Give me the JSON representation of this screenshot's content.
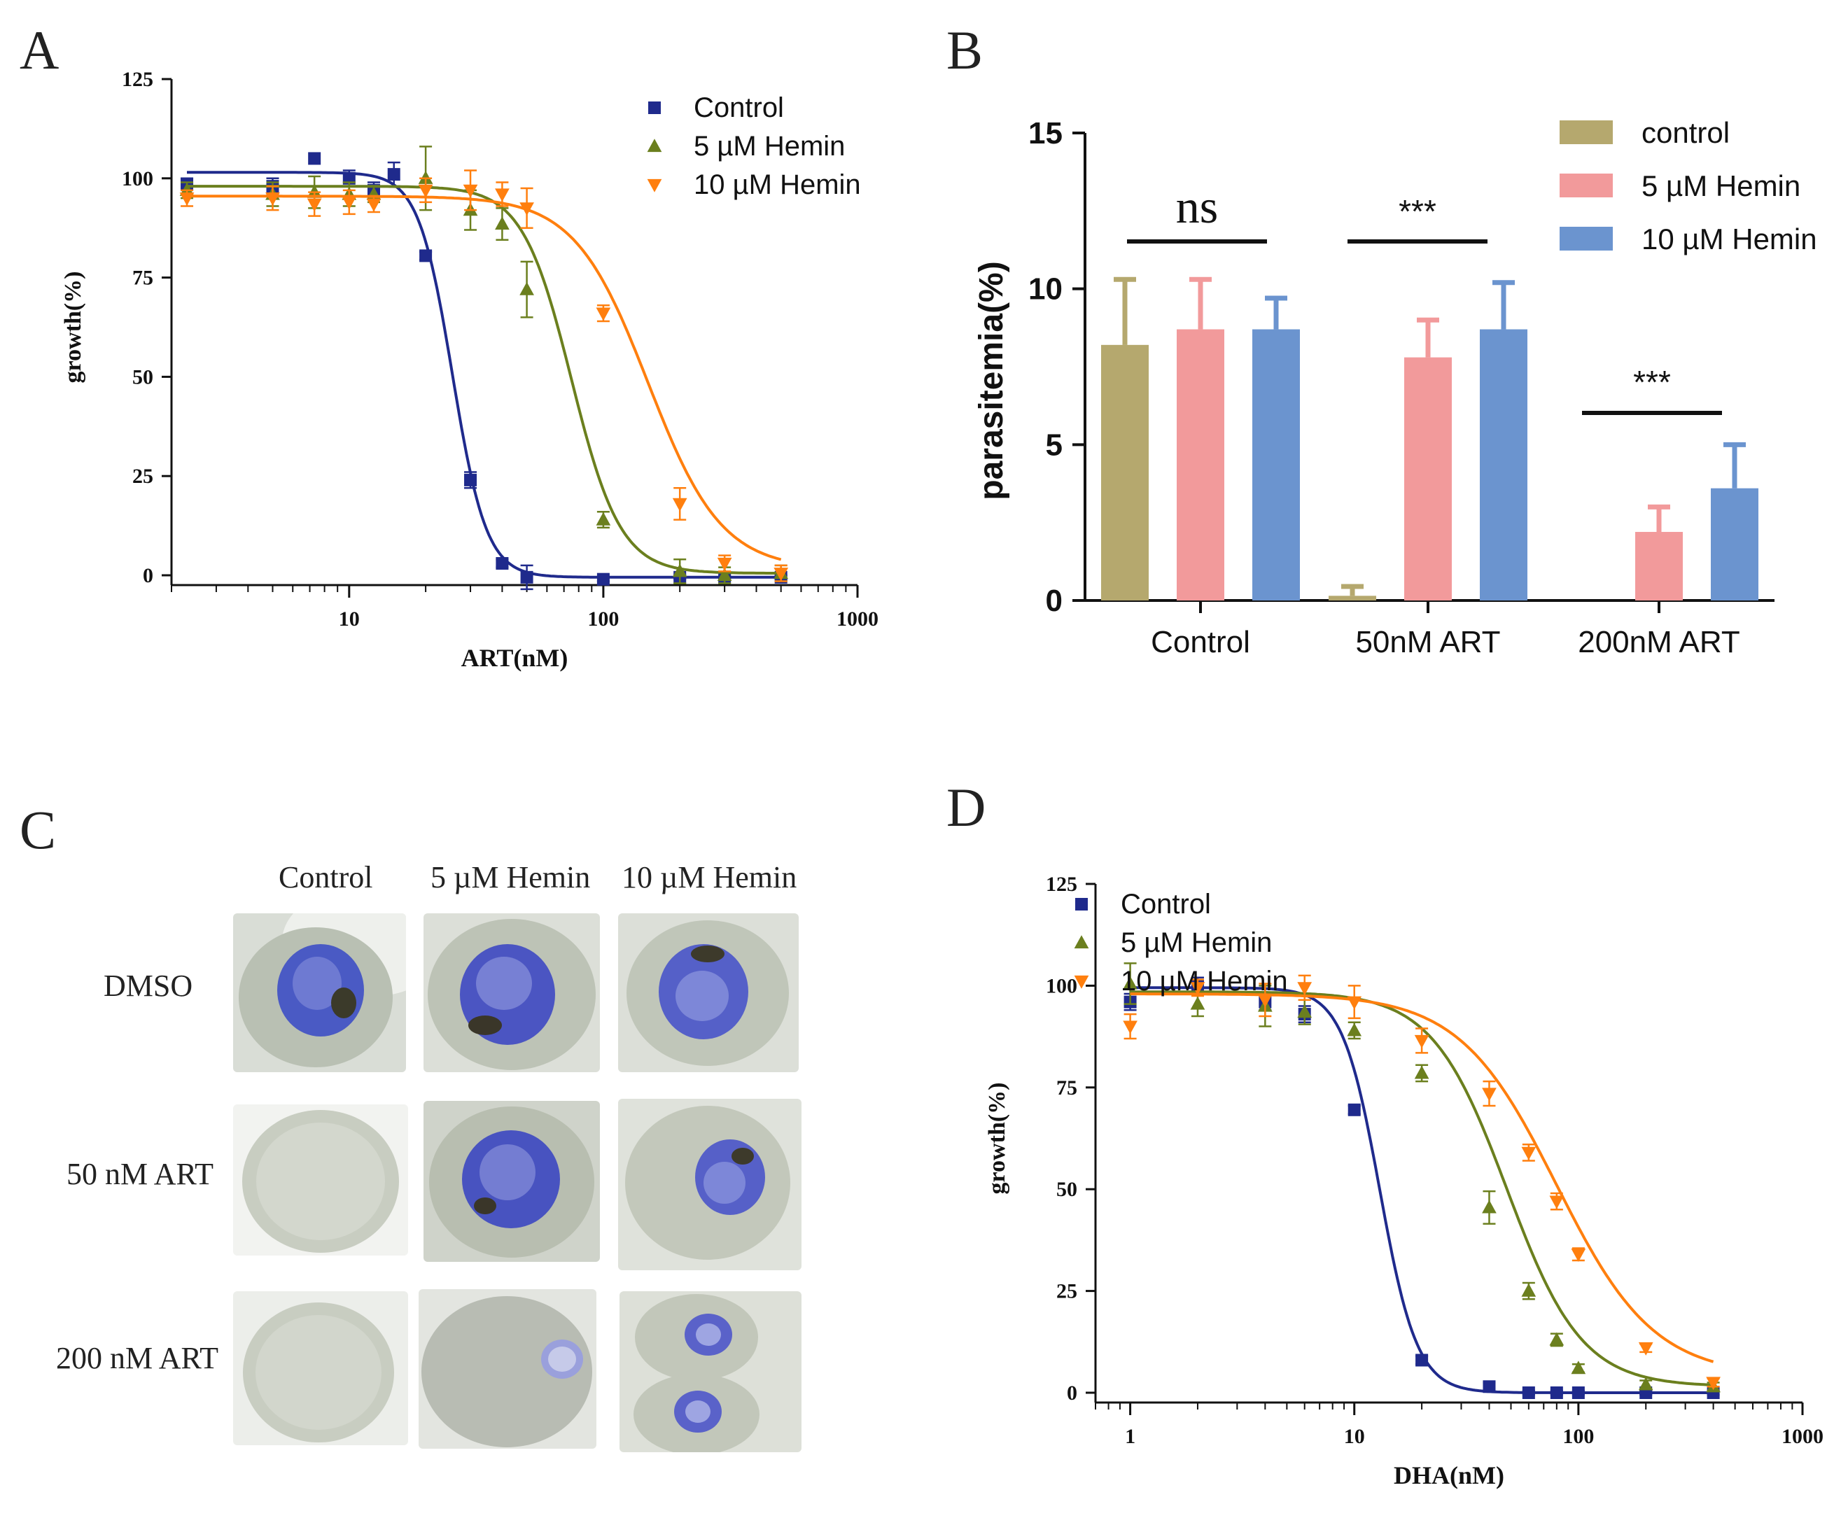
{
  "panel_letters": {
    "A": "A",
    "B": "B",
    "C": "C",
    "D": "D"
  },
  "chart_data": [
    {
      "id": "A",
      "type": "scatter",
      "scale": "log",
      "xlabel": "ART(nM)",
      "ylabel": "growth(%)",
      "xlim": [
        2,
        1000
      ],
      "ylim": [
        0,
        125
      ],
      "xticks": [
        10,
        100,
        1000
      ],
      "yticks": [
        0,
        25,
        50,
        75,
        100,
        125
      ],
      "legend_position": "top-right",
      "series": [
        {
          "name": "Control",
          "color": "#1f2a8c",
          "marker": "square",
          "x": [
            2.3,
            5,
            7.3,
            10,
            12.5,
            15,
            20,
            30,
            40,
            50,
            100,
            200,
            300,
            500
          ],
          "y": [
            98.5,
            98,
            105,
            100,
            97,
            101,
            80.5,
            24,
            3,
            -0.5,
            -1,
            -0.5,
            -0.5,
            -0.5
          ],
          "err": [
            1.5,
            2,
            0,
            2,
            2,
            3,
            1,
            2,
            1,
            3,
            0.5,
            0.5,
            0.5,
            0.5
          ],
          "fit": {
            "top": 101.5,
            "bottom": -0.5,
            "ec50": 25.5,
            "hill": 6.5
          }
        },
        {
          "name": "5 µM Hemin",
          "color": "#6b7f1e",
          "marker": "triangle-up",
          "x": [
            2.3,
            5,
            7.3,
            10,
            12.5,
            20,
            30,
            40,
            50,
            100,
            200,
            300,
            500
          ],
          "y": [
            97,
            96,
            96.5,
            96,
            96,
            100,
            92,
            88.5,
            72,
            14,
            1,
            0,
            0.5
          ],
          "err": [
            2,
            3,
            4,
            3,
            2,
            8,
            5,
            4,
            7,
            2,
            3,
            2,
            2
          ],
          "fit": {
            "top": 98,
            "bottom": 0.5,
            "ec50": 75,
            "hill": 4.5
          }
        },
        {
          "name": "10 µM Hemin",
          "color": "#ff7f0e",
          "marker": "triangle-down",
          "x": [
            2.3,
            5,
            7.3,
            10,
            12.5,
            20,
            30,
            40,
            50,
            100,
            200,
            300,
            500
          ],
          "y": [
            95,
            95,
            93.5,
            94,
            93.5,
            97,
            97,
            96,
            92.5,
            66,
            18,
            3,
            0.5
          ],
          "err": [
            2,
            3,
            3,
            3,
            2,
            3,
            5,
            3,
            5,
            2,
            4,
            2,
            2
          ],
          "fit": {
            "top": 95.5,
            "bottom": 1.5,
            "ec50": 150,
            "hill": 3.0
          }
        }
      ]
    },
    {
      "id": "B",
      "type": "bar",
      "ylabel": "parasitemia(%)",
      "ylim": [
        0,
        15
      ],
      "yticks": [
        0,
        5,
        10,
        15
      ],
      "categories": [
        "Control",
        "50nM ART",
        "200nM ART"
      ],
      "legend_position": "top-right",
      "series": [
        {
          "name": "control",
          "color": "#b5a86e",
          "values": [
            8.2,
            0.15,
            0
          ],
          "err": [
            2.1,
            0.3,
            0
          ]
        },
        {
          "name": "5 µM Hemin",
          "color": "#f29a9b",
          "values": [
            8.7,
            7.8,
            2.2
          ],
          "err": [
            1.6,
            1.2,
            0.8
          ]
        },
        {
          "name": "10 µM Hemin",
          "color": "#6b94cf",
          "values": [
            8.7,
            8.7,
            3.6
          ],
          "err": [
            1.0,
            1.5,
            1.4
          ]
        }
      ],
      "annotations": [
        {
          "text": "ns",
          "category": "Control"
        },
        {
          "text": "***",
          "category": "50nM ART"
        },
        {
          "text": "***",
          "category": "200nM ART"
        }
      ]
    },
    {
      "id": "D",
      "type": "scatter",
      "scale": "log",
      "xlabel": "DHA(nM)",
      "ylabel": "growth(%)",
      "xlim": [
        0.7,
        1000
      ],
      "ylim": [
        0,
        125
      ],
      "xticks": [
        1,
        10,
        100,
        1000
      ],
      "yticks": [
        0,
        25,
        50,
        75,
        100,
        125
      ],
      "legend_position": "top-right",
      "series": [
        {
          "name": "Control",
          "color": "#1f2a8c",
          "marker": "square",
          "x": [
            1,
            2,
            4,
            6,
            10,
            20,
            40,
            60,
            80,
            100,
            200,
            400
          ],
          "y": [
            96,
            100,
            96,
            93,
            69.5,
            8,
            1.5,
            0,
            0,
            0,
            0,
            0
          ],
          "err": [
            2,
            2,
            2,
            2,
            1,
            1,
            1,
            0.5,
            0.5,
            0.5,
            0.5,
            0.5
          ],
          "fit": {
            "top": 99.5,
            "bottom": 0,
            "ec50": 13,
            "hill": 5.2
          }
        },
        {
          "name": "5 µM Hemin",
          "color": "#6b7f1e",
          "marker": "triangle-up",
          "x": [
            1,
            2,
            4,
            6,
            10,
            20,
            40,
            60,
            80,
            100,
            200,
            400
          ],
          "y": [
            100.5,
            95.5,
            95,
            93.5,
            89,
            78.5,
            45.5,
            25,
            13,
            6,
            2,
            1.5
          ],
          "err": [
            5,
            3,
            5,
            3,
            2,
            2,
            4,
            2,
            1.5,
            1,
            1,
            1
          ],
          "fit": {
            "top": 98.5,
            "bottom": 1.5,
            "ec50": 48,
            "hill": 2.6
          }
        },
        {
          "name": "10 µM Hemin",
          "color": "#ff7f0e",
          "marker": "triangle-down",
          "x": [
            1,
            2,
            4,
            6,
            10,
            20,
            40,
            60,
            80,
            100,
            200,
            400
          ],
          "y": [
            90,
            99.5,
            96.5,
            99.5,
            96,
            86.5,
            73.5,
            59,
            47,
            34,
            11,
            2.5
          ],
          "err": [
            3,
            2,
            4,
            3,
            4,
            3,
            3,
            2,
            2,
            1.5,
            1,
            1
          ],
          "fit": {
            "top": 98,
            "bottom": 4,
            "ec50": 80,
            "hill": 2.0
          }
        }
      ]
    }
  ],
  "panel_c": {
    "col_headers": [
      "Control",
      "5 µM Hemin",
      "10 µM Hemin"
    ],
    "row_labels": [
      "DMSO",
      "50 nM ART",
      "200 nM ART"
    ]
  }
}
